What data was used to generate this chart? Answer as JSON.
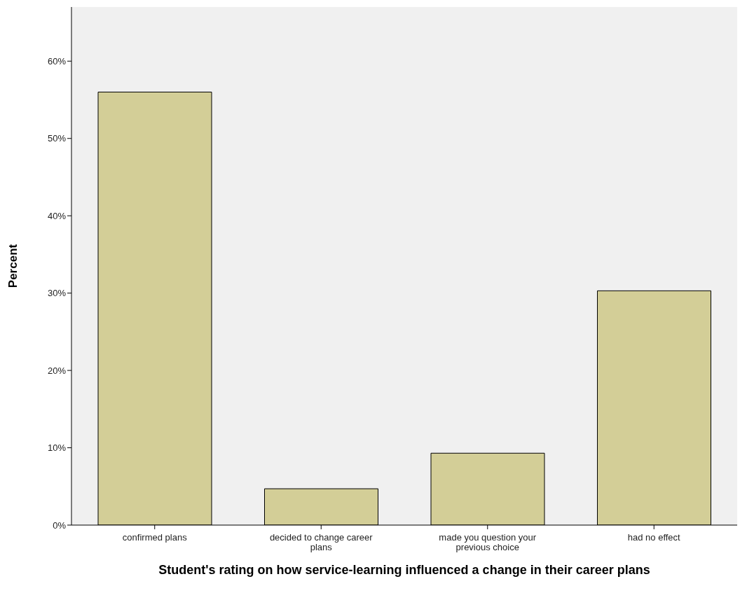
{
  "chart_data": {
    "type": "bar",
    "xlabel": "Student's rating on how service-learning influenced a change in their career plans",
    "ylabel": "Percent",
    "categories": [
      "confirmed plans",
      "decided to change career plans",
      "made you question your previous choice",
      "had no effect"
    ],
    "values": [
      56,
      4.7,
      9.3,
      30.3
    ],
    "color": "#d3ce97",
    "ylim": [
      0,
      67
    ],
    "yticks": [
      {
        "value": 0,
        "label": "0%"
      },
      {
        "value": 10,
        "label": "10%"
      },
      {
        "value": 20,
        "label": "20%"
      },
      {
        "value": 30,
        "label": "30%"
      },
      {
        "value": 40,
        "label": "40%"
      },
      {
        "value": 50,
        "label": "50%"
      },
      {
        "value": 60,
        "label": "60%"
      }
    ]
  }
}
